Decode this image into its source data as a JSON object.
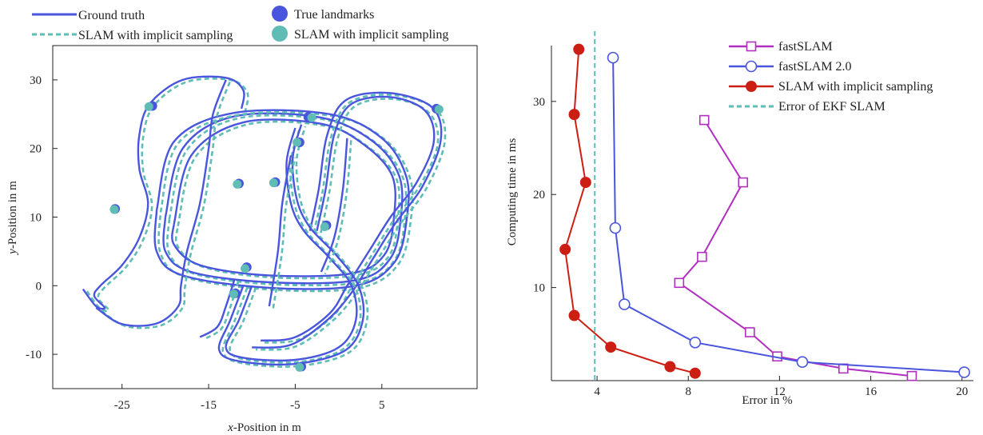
{
  "colors": {
    "truth": "#4a55dd",
    "slam": "#5fbdb5",
    "landmark_true": "#4a55dd",
    "landmark_slam": "#5fbdb5",
    "fastslam": "#b02ec0",
    "fastslam2": "#4a55dd",
    "implicit": "#cc1f14",
    "ekf": "#5fbdb5"
  },
  "chart_data": [
    {
      "type": "line",
      "xlabel_prefix": "x",
      "xlabel_suffix": "-Position in m",
      "ylabel_prefix": "y",
      "ylabel_suffix": "-Position in m",
      "xlim": [
        -33,
        16
      ],
      "ylim": [
        -15,
        35
      ],
      "xticks": [
        -25,
        -15,
        -5,
        5
      ],
      "yticks": [
        -10,
        0,
        10,
        20,
        30
      ],
      "legend": [
        {
          "label": "Ground truth",
          "style": "line"
        },
        {
          "label": "SLAM with implicit sampling",
          "style": "dashed"
        },
        {
          "label": "True landmarks",
          "style": "dot"
        },
        {
          "label": "SLAM with implicit sampling",
          "style": "dot"
        }
      ],
      "landmarks_true": [
        [
          -21.5,
          26.2
        ],
        [
          -3.5,
          24.6
        ],
        [
          11.3,
          25.8
        ],
        [
          -4.5,
          20.9
        ],
        [
          -11.5,
          14.9
        ],
        [
          -7.3,
          15.1
        ],
        [
          -25.8,
          11.2
        ],
        [
          -1.4,
          8.8
        ],
        [
          -10.6,
          2.7
        ],
        [
          -11.9,
          -1.1
        ],
        [
          -4.3,
          -11.8
        ]
      ],
      "landmarks_slam": [
        [
          -21.9,
          26.1
        ],
        [
          -3.1,
          24.5
        ],
        [
          11.6,
          25.7
        ],
        [
          -4.8,
          20.9
        ],
        [
          -11.7,
          14.8
        ],
        [
          -7.5,
          15.0
        ],
        [
          -25.9,
          11.1
        ],
        [
          -1.6,
          8.6
        ],
        [
          -10.8,
          2.5
        ],
        [
          -12.1,
          -1.2
        ],
        [
          -4.5,
          -11.9
        ]
      ]
    },
    {
      "type": "line",
      "xlabel": "Error in %",
      "ylabel": "Computing time in ms",
      "xlim": [
        2,
        20.5
      ],
      "ylim": [
        0,
        36
      ],
      "xticks": [
        4,
        8,
        12,
        16,
        20
      ],
      "yticks": [
        10,
        20,
        30
      ],
      "ekf_error": 3.9,
      "series": [
        {
          "name": "fastSLAM",
          "marker": "square",
          "x": [
            17.8,
            14.8,
            11.9,
            10.7,
            7.6,
            8.6,
            10.4,
            8.7
          ],
          "y": [
            0.5,
            1.3,
            2.6,
            5.2,
            10.5,
            13.3,
            21.3,
            28.0
          ]
        },
        {
          "name": "fastSLAM 2.0",
          "marker": "circle",
          "x": [
            20.1,
            13.0,
            8.3,
            5.2,
            4.8,
            4.7
          ],
          "y": [
            0.9,
            2.0,
            4.1,
            8.2,
            16.4,
            34.7
          ]
        },
        {
          "name": "SLAM with implicit sampling",
          "marker": "filled-circle",
          "x": [
            8.3,
            7.2,
            4.6,
            3.0,
            2.6,
            3.5,
            3.0,
            3.2
          ],
          "y": [
            0.8,
            1.5,
            3.6,
            7.0,
            14.1,
            21.3,
            28.6,
            35.6
          ]
        },
        {
          "name": "Error of EKF SLAM",
          "marker": "dashed-line"
        }
      ]
    }
  ]
}
